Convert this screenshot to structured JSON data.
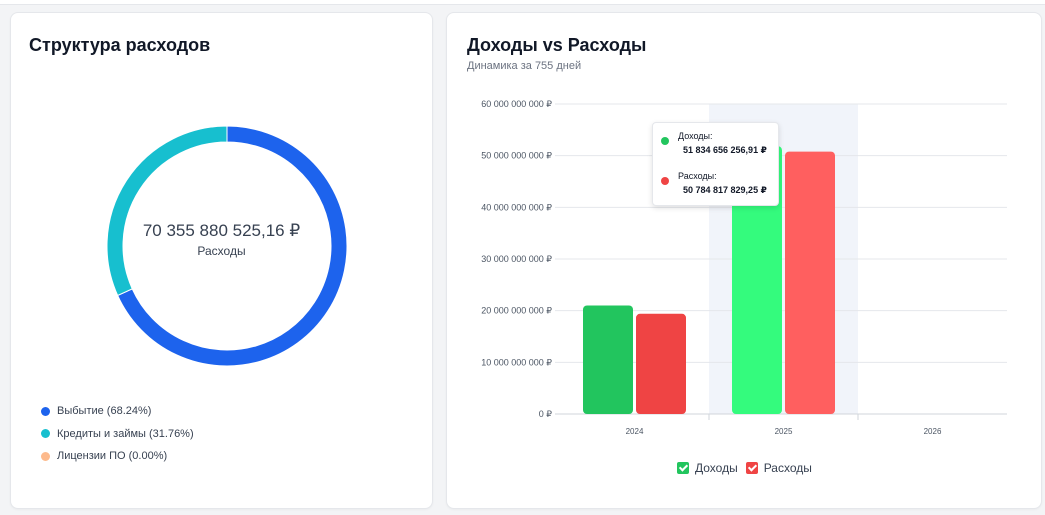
{
  "expense_structure": {
    "title": "Структура расходов",
    "center_value": "70 355 880 525,16 ₽",
    "center_label": "Расходы",
    "legend": [
      {
        "label": "Выбытие (68.24%)",
        "color": "#1d63ed"
      },
      {
        "label": "Кредиты и займы (31.76%)",
        "color": "#17bfcf"
      },
      {
        "label": "Лицензии ПО (0.00%)",
        "color": "#fdba8c"
      }
    ]
  },
  "income_vs_expense": {
    "title": "Доходы vs Расходы",
    "subtitle": "Динамика за 755 дней",
    "tooltip": {
      "income_label": "Доходы:",
      "income_value": "51 834 656 256,91 ₽",
      "expense_label": "Расходы:",
      "expense_value": "50 784 817 829,25 ₽"
    },
    "legend": [
      {
        "label": "Доходы",
        "color": "#22c55e"
      },
      {
        "label": "Расходы",
        "color": "#ef4444"
      }
    ]
  },
  "chart_data": [
    {
      "type": "pie",
      "categories": [
        "Выбытие",
        "Кредиты и займы",
        "Лицензии ПО"
      ],
      "values": [
        68.24,
        31.76,
        0.0
      ],
      "colors": [
        "#1d63ed",
        "#17bfcf",
        "#fdba8c"
      ],
      "title": "Структура расходов",
      "legend_position": "bottom-left"
    },
    {
      "type": "bar",
      "categories": [
        "2024",
        "2025",
        "2026"
      ],
      "series": [
        {
          "name": "Доходы",
          "values": [
            21000000000,
            51834656256.91,
            0
          ],
          "color": "#22c55e",
          "highlight_color": "#34fb7d"
        },
        {
          "name": "Расходы",
          "values": [
            19400000000,
            50784817829.25,
            0
          ],
          "color": "#ef4444",
          "highlight_color": "#ff5f5f"
        }
      ],
      "yticks": [
        "0 ₽",
        "10 000 000 000 ₽",
        "20 000 000 000 ₽",
        "30 000 000 000 ₽",
        "40 000 000 000 ₽",
        "50 000 000 000 ₽",
        "60 000 000 000 ₽"
      ],
      "ylim": [
        0,
        60000000000
      ],
      "highlighted_category": "2025",
      "title": "Доходы vs Расходы",
      "subtitle": "Динамика за 755 дней",
      "grid": true,
      "legend_position": "bottom"
    }
  ]
}
